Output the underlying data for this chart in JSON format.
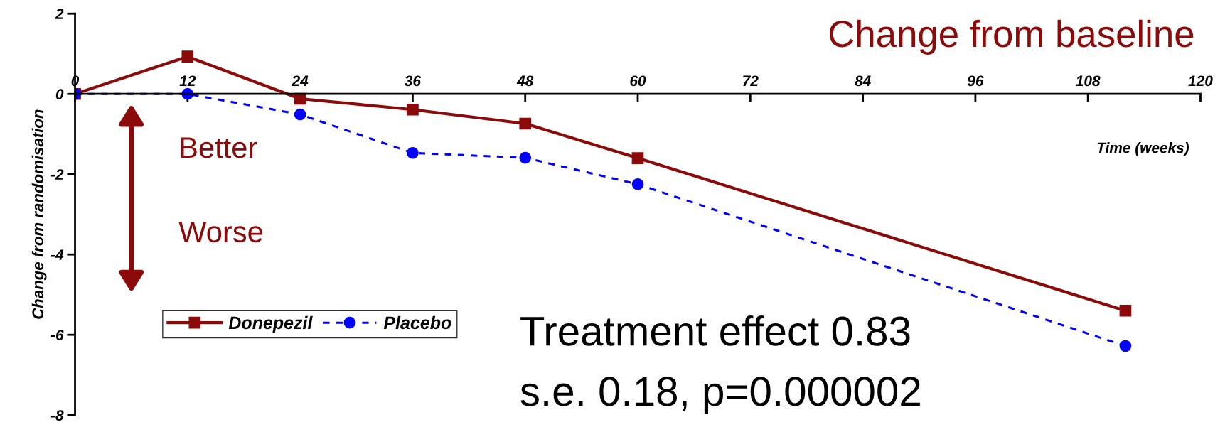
{
  "chart_data": {
    "type": "line",
    "title": "Change from baseline",
    "xlabel": "Time (weeks)",
    "ylabel": "Change from randomisation",
    "xlim": [
      0,
      120
    ],
    "xticks": [
      0,
      12,
      24,
      36,
      48,
      60,
      72,
      84,
      96,
      108,
      120
    ],
    "ylim": [
      -8,
      2
    ],
    "yticks": [
      -8,
      -6,
      -4,
      -2,
      0,
      2
    ],
    "series": [
      {
        "name": "Donepezil",
        "color": "#8b0a0a",
        "x": [
          0,
          12,
          24,
          36,
          48,
          60,
          112
        ],
        "values": [
          0,
          0.93,
          -0.12,
          -0.39,
          -0.74,
          -1.6,
          -5.4
        ],
        "marker": "square",
        "line_style": "solid"
      },
      {
        "name": "Placebo",
        "color": "#0000ff",
        "x": [
          0,
          12,
          24,
          36,
          48,
          60,
          112
        ],
        "values": [
          0,
          0,
          -0.51,
          -1.47,
          -1.59,
          -2.25,
          -6.28
        ],
        "marker": "circle",
        "line_style": "dashed"
      }
    ],
    "annotations": [
      "Better",
      "Worse",
      "Treatment effect 0.83",
      "s.e. 0.18, p=0.000002"
    ],
    "legend": "bottom left",
    "grid": false
  }
}
